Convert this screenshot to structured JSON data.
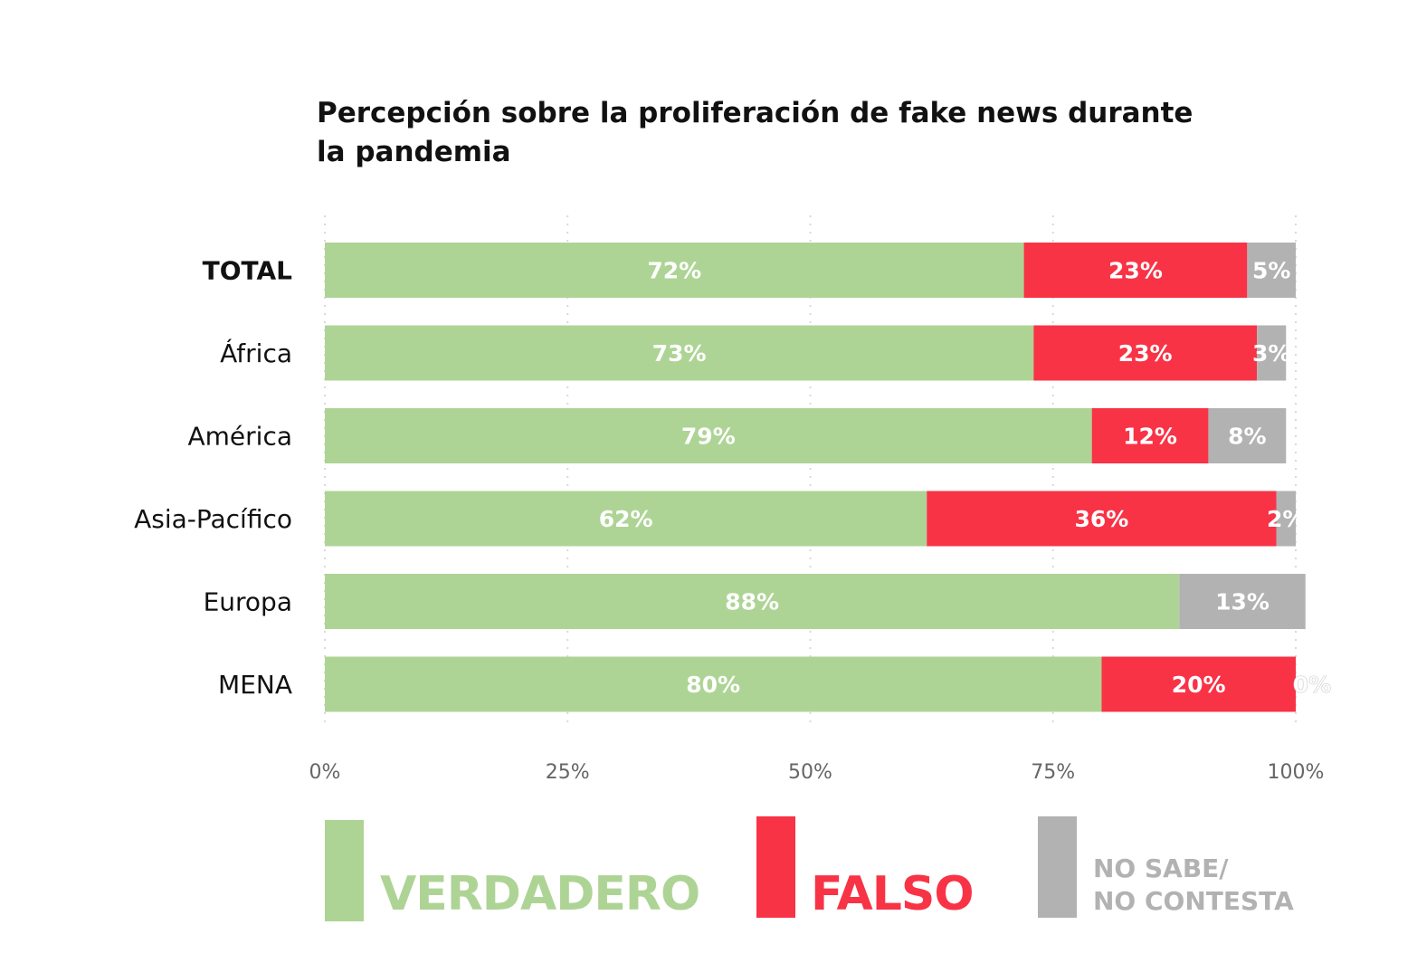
{
  "chart_data": {
    "type": "bar",
    "orientation": "horizontal",
    "stacked": true,
    "title": "Percepción sobre la proliferación de fake news durante la pandemia",
    "categories": [
      "TOTAL",
      "África",
      "América",
      "Asia-Pacífico",
      "Europa",
      "MENA"
    ],
    "series": [
      {
        "name": "VERDADERO",
        "color": "#aed495",
        "values": [
          72,
          73,
          79,
          62,
          88,
          80
        ],
        "labels": [
          "72%",
          "73%",
          "79%",
          "62%",
          "88%",
          "80%"
        ]
      },
      {
        "name": "FALSO",
        "color": "#f83346",
        "values": [
          23,
          23,
          12,
          36,
          0,
          20
        ],
        "labels": [
          "23%",
          "23%",
          "12%",
          "36%",
          "",
          "20%"
        ]
      },
      {
        "name": "NO SABE/ NO CONTESTA",
        "color": "#b2b2b2",
        "values": [
          5,
          3,
          8,
          2,
          13,
          0
        ],
        "labels": [
          "5%",
          "3%",
          "8%",
          "2%",
          "13%",
          "0%"
        ]
      }
    ],
    "x_ticks": [
      "0%",
      "25%",
      "50%",
      "75%",
      "100%"
    ],
    "xlim": [
      0,
      100
    ],
    "grid": true,
    "legend": {
      "position": "bottom",
      "items": [
        {
          "label": "VERDADERO",
          "color": "#aed495"
        },
        {
          "label": "FALSO",
          "color": "#f83346"
        },
        {
          "label_line1": "NO SABE/",
          "label_line2": "NO CONTESTA",
          "color": "#b2b2b2"
        }
      ]
    }
  }
}
